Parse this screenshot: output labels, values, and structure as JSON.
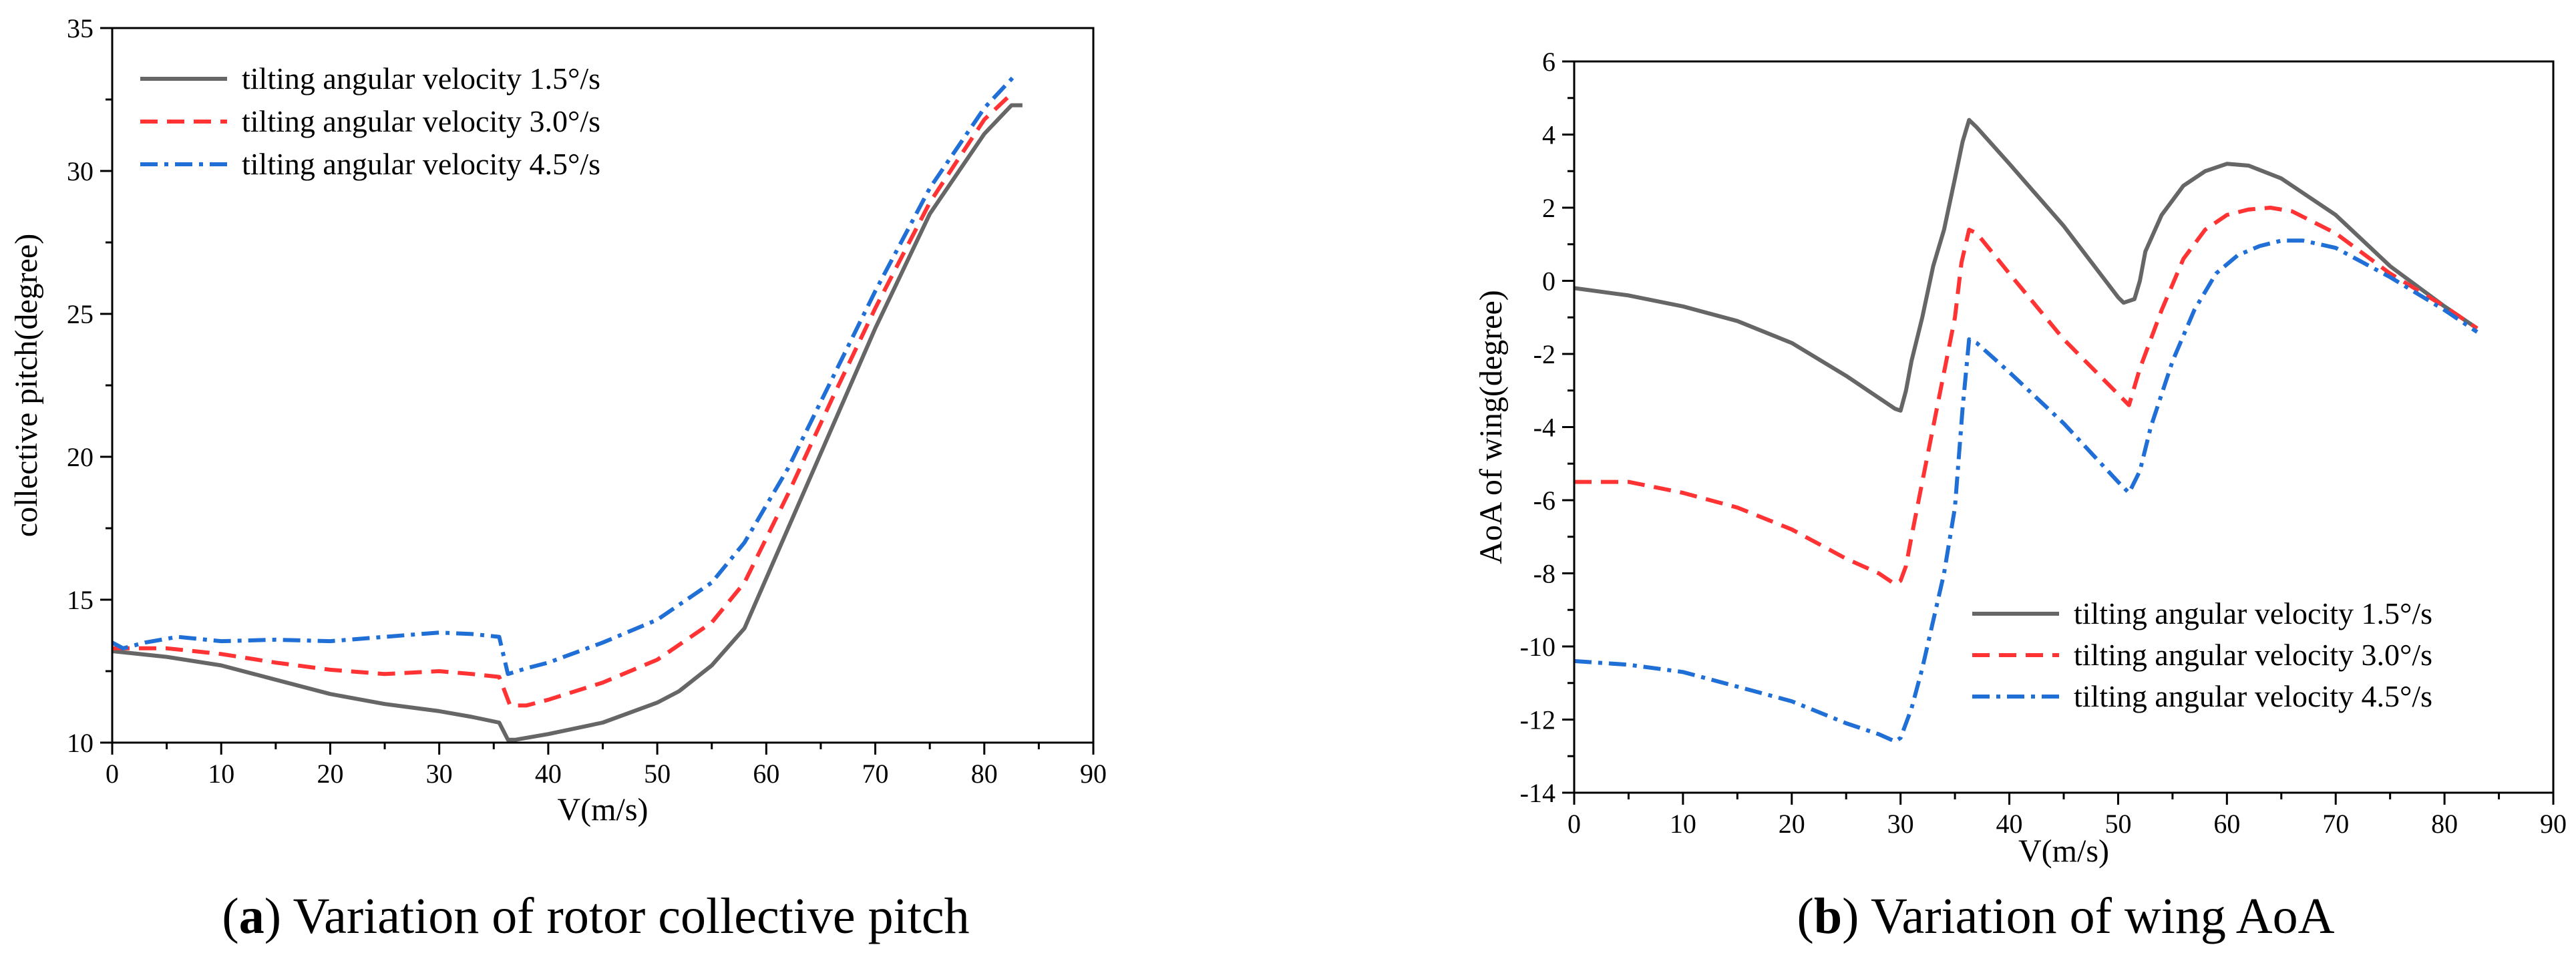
{
  "colors": {
    "series1": "#666666",
    "series2": "#ff3333",
    "series3": "#1f6fd6",
    "axis": "#000000"
  },
  "chart_data": [
    {
      "type": "line",
      "panel_label": "a",
      "caption": "Variation of rotor collective pitch",
      "title": "",
      "xlabel": "V(m/s)",
      "ylabel": "collective pitch(degree)",
      "xlim": [
        0,
        90
      ],
      "ylim": [
        10,
        35
      ],
      "xticks": [
        0,
        10,
        20,
        30,
        40,
        50,
        60,
        70,
        80,
        90
      ],
      "yticks": [
        10,
        15,
        20,
        25,
        30,
        35
      ],
      "grid": false,
      "legend_position": "top-left",
      "series": [
        {
          "name": "tilting angular velocity 1.5°/s",
          "style": "solid",
          "x": [
            0,
            5,
            10,
            15,
            20,
            25,
            30,
            33,
            35.5,
            36.3,
            37,
            40,
            45,
            50,
            52,
            55,
            58,
            62,
            66,
            70,
            75,
            80,
            82.5,
            83.5
          ],
          "y": [
            13.2,
            13.0,
            12.7,
            12.2,
            11.7,
            11.35,
            11.1,
            10.9,
            10.7,
            10.1,
            10.1,
            10.3,
            10.7,
            11.4,
            11.8,
            12.7,
            14.0,
            17.5,
            21.0,
            24.5,
            28.5,
            31.3,
            32.3,
            32.3
          ]
        },
        {
          "name": "tilting angular velocity 3.0°/s",
          "style": "dashed",
          "x": [
            0,
            5,
            10,
            15,
            20,
            25,
            30,
            33,
            35.5,
            36.5,
            38,
            40,
            45,
            50,
            55,
            58,
            62,
            66,
            70,
            75,
            80,
            82.5
          ],
          "y": [
            13.3,
            13.3,
            13.1,
            12.8,
            12.55,
            12.4,
            12.5,
            12.4,
            12.3,
            11.3,
            11.3,
            11.5,
            12.1,
            12.9,
            14.2,
            15.6,
            18.7,
            22.0,
            25.2,
            28.9,
            31.8,
            32.7
          ]
        },
        {
          "name": "tilting angular velocity 4.5°/s",
          "style": "dash-dot",
          "x": [
            0,
            1,
            3,
            6,
            10,
            15,
            20,
            25,
            30,
            33,
            35.5,
            36.3,
            38,
            40,
            45,
            50,
            55,
            58,
            62,
            66,
            70,
            75,
            80,
            82.7
          ],
          "y": [
            13.5,
            13.3,
            13.5,
            13.7,
            13.55,
            13.6,
            13.55,
            13.7,
            13.85,
            13.8,
            13.7,
            12.4,
            12.6,
            12.8,
            13.5,
            14.3,
            15.6,
            17.0,
            19.6,
            22.7,
            25.8,
            29.4,
            32.2,
            33.3
          ]
        }
      ]
    },
    {
      "type": "line",
      "panel_label": "b",
      "caption": "Variation of wing AoA",
      "title": "",
      "xlabel": "V(m/s)",
      "ylabel": "AoA of wing(degree)",
      "xlim": [
        0,
        90
      ],
      "ylim": [
        -14,
        6
      ],
      "xticks": [
        0,
        10,
        20,
        30,
        40,
        50,
        60,
        70,
        80,
        90
      ],
      "yticks": [
        -14,
        -12,
        -10,
        -8,
        -6,
        -4,
        -2,
        0,
        2,
        4,
        6
      ],
      "grid": false,
      "legend_position": "bottom-right",
      "series": [
        {
          "name": "tilting angular velocity 1.5°/s",
          "style": "solid",
          "x": [
            0,
            5,
            10,
            15,
            20,
            25,
            28,
            29.5,
            30,
            30.5,
            31,
            32,
            33,
            34,
            35,
            35.7,
            36.3,
            37,
            40,
            45,
            50,
            50.5,
            51.5,
            52,
            52.5,
            54,
            56,
            58,
            60,
            62,
            65,
            70,
            75,
            80,
            83
          ],
          "y": [
            -0.2,
            -0.4,
            -0.7,
            -1.1,
            -1.7,
            -2.6,
            -3.2,
            -3.5,
            -3.55,
            -3.0,
            -2.2,
            -1.0,
            0.4,
            1.4,
            2.8,
            3.8,
            4.4,
            4.2,
            3.2,
            1.5,
            -0.45,
            -0.6,
            -0.5,
            0.0,
            0.8,
            1.8,
            2.6,
            3.0,
            3.2,
            3.15,
            2.8,
            1.8,
            0.4,
            -0.7,
            -1.3
          ]
        },
        {
          "name": "tilting angular velocity 3.0°/s",
          "style": "dashed",
          "x": [
            0,
            5,
            10,
            15,
            20,
            25,
            28,
            29.5,
            30,
            30.5,
            31,
            32,
            33,
            34,
            35,
            35.6,
            36.3,
            37,
            40,
            45,
            50,
            51,
            52,
            54,
            56,
            58,
            60,
            62,
            64,
            66,
            70,
            75,
            80,
            83
          ],
          "y": [
            -5.5,
            -5.5,
            -5.8,
            -6.2,
            -6.8,
            -7.6,
            -8.0,
            -8.3,
            -8.2,
            -7.8,
            -7.0,
            -5.5,
            -4.0,
            -2.5,
            -1.0,
            0.5,
            1.4,
            1.3,
            0.2,
            -1.6,
            -3.1,
            -3.4,
            -2.4,
            -0.8,
            0.6,
            1.4,
            1.8,
            1.95,
            2.0,
            1.9,
            1.3,
            0.2,
            -0.7,
            -1.3
          ]
        },
        {
          "name": "tilting angular velocity 4.5°/s",
          "style": "dash-dot",
          "x": [
            0,
            5,
            10,
            15,
            20,
            25,
            28,
            29.5,
            30,
            31,
            32,
            33,
            34,
            35,
            35.7,
            36.3,
            37,
            40,
            45,
            50,
            51,
            52,
            53,
            55,
            57,
            59,
            61,
            63,
            65,
            67,
            70,
            75,
            80,
            83
          ],
          "y": [
            -10.4,
            -10.5,
            -10.7,
            -11.1,
            -11.5,
            -12.1,
            -12.4,
            -12.6,
            -12.5,
            -11.7,
            -10.6,
            -9.3,
            -8.0,
            -6.2,
            -3.5,
            -1.6,
            -1.7,
            -2.5,
            -3.9,
            -5.5,
            -5.8,
            -5.2,
            -4.0,
            -2.2,
            -0.8,
            0.2,
            0.7,
            0.95,
            1.1,
            1.1,
            0.9,
            0.1,
            -0.8,
            -1.4
          ]
        }
      ]
    }
  ]
}
